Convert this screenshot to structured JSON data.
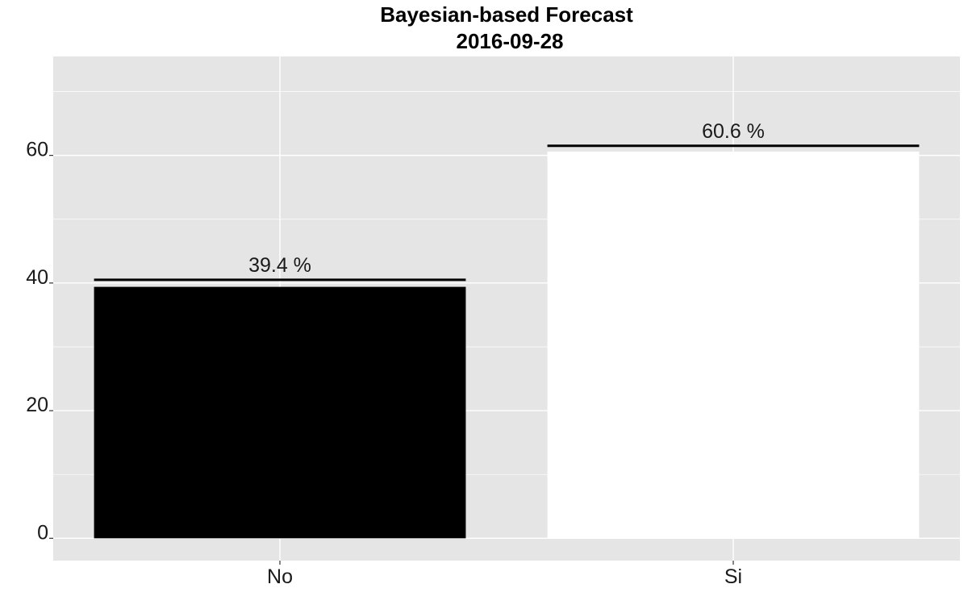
{
  "chart_data": {
    "type": "bar",
    "title": "Bayesian-based Forecast",
    "subtitle": "2016-09-28",
    "categories": [
      "No",
      "Si"
    ],
    "values": [
      39.4,
      60.6
    ],
    "data_labels": [
      "39.4 %",
      "60.6 %"
    ],
    "bar_colors": [
      "#000000",
      "#ffffff"
    ],
    "xlabel": "",
    "ylabel": "",
    "ylim": [
      -3.5,
      75.5
    ],
    "yticks": [
      0,
      20,
      40,
      60
    ],
    "ytick_labels": [
      "0",
      "20",
      "40",
      "60"
    ],
    "grid": true,
    "legend": "none",
    "panel_background": "#e5e5e5",
    "grid_color": "#ffffff",
    "reference_lines": [
      40.5,
      61.5
    ]
  }
}
